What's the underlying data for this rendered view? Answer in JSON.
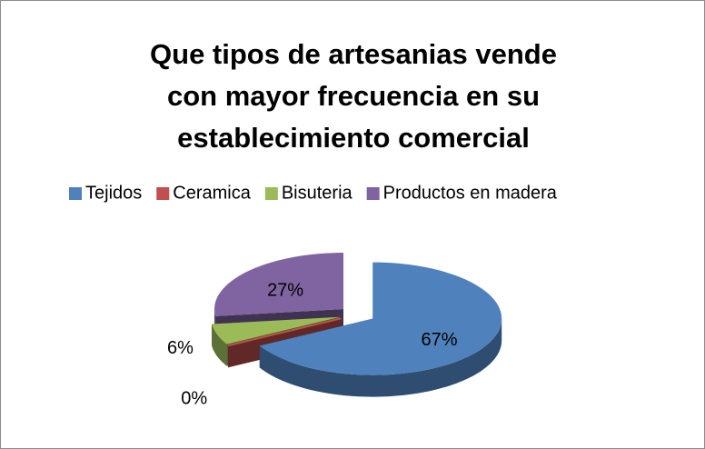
{
  "chart_data": {
    "type": "pie3d",
    "title": "Que tipos de artesanias vende con mayor frecuencia en su establecimiento comercial",
    "categories": [
      "Tejidos",
      "Ceramica",
      "Bisuteria",
      "Productos en madera"
    ],
    "values": [
      67,
      0,
      6,
      27
    ],
    "value_labels": [
      "67%",
      "0%",
      "6%",
      "27%"
    ],
    "colors": [
      "#4f81bd",
      "#c0504d",
      "#9bbb59",
      "#8064a2"
    ],
    "legend": "top"
  }
}
